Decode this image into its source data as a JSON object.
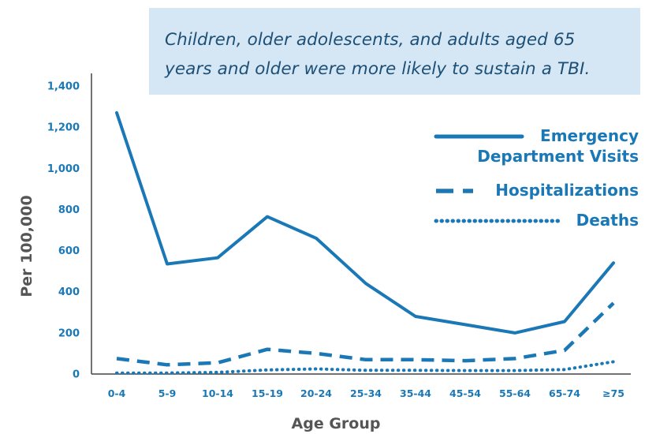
{
  "callout": {
    "line1": "Children, older adolescents, and adults aged 65",
    "line2": "years and older were more likely to sustain a TBI."
  },
  "colors": {
    "series": "#1a78b6",
    "callout_bg": "#d5e7f4",
    "axis": "#555555"
  },
  "chart_data": {
    "type": "line",
    "title": "",
    "xlabel": "Age Group",
    "ylabel": "Per 100,000",
    "ylim": [
      0,
      1400
    ],
    "yticks": [
      "0",
      "200",
      "400",
      "600",
      "800",
      "1,000",
      "1,200",
      "1,400"
    ],
    "categories": [
      "0-4",
      "5-9",
      "10-14",
      "15-19",
      "20-24",
      "25-34",
      "35-44",
      "45-54",
      "55-64",
      "65-74",
      "≥75"
    ],
    "series": [
      {
        "name": "Emergency Department Visits",
        "style": "solid",
        "values": [
          1270,
          535,
          565,
          765,
          660,
          440,
          280,
          240,
          200,
          255,
          540
        ]
      },
      {
        "name": "Hospitalizations",
        "style": "dashed",
        "values": [
          75,
          45,
          55,
          120,
          100,
          70,
          70,
          65,
          75,
          115,
          345
        ]
      },
      {
        "name": "Deaths",
        "style": "dotted",
        "values": [
          5,
          5,
          8,
          20,
          25,
          18,
          18,
          17,
          17,
          22,
          60
        ]
      }
    ],
    "legend_position": "top-right",
    "grid": false
  }
}
